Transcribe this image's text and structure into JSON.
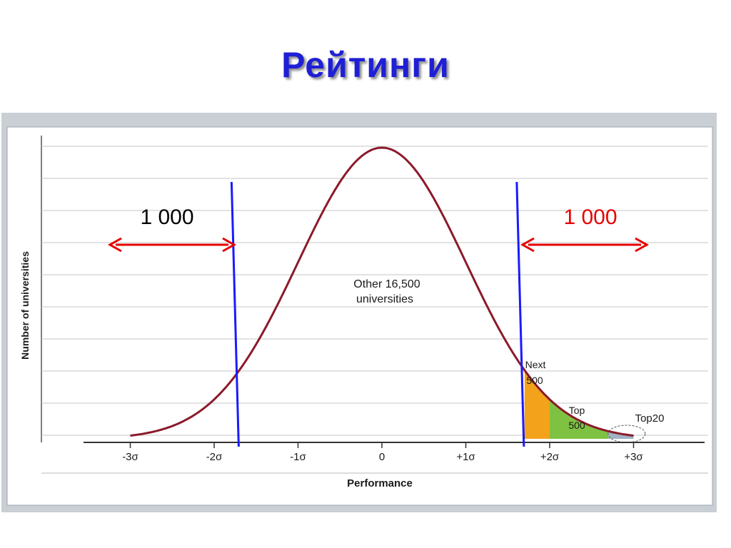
{
  "slide": {
    "title": "Рейтинги"
  },
  "chart_data": {
    "type": "area",
    "xlabel": "Performance",
    "ylabel": "Number of universities",
    "x_ticks": [
      {
        "value": -3,
        "label": "-3σ"
      },
      {
        "value": -2,
        "label": "-2σ"
      },
      {
        "value": -1,
        "label": "-1σ"
      },
      {
        "value": 0,
        "label": "0"
      },
      {
        "value": 1,
        "label": "+1σ"
      },
      {
        "value": 2,
        "label": "+2σ"
      },
      {
        "value": 3,
        "label": "+3σ"
      }
    ],
    "xlim": [
      -3.4,
      3.4
    ],
    "curve": "normal distribution",
    "regions": [
      {
        "name": "other",
        "label": "Other 16,500 universities",
        "from": -3,
        "to": 1.7,
        "color": "#ffffff"
      },
      {
        "name": "next-500",
        "label": "Next 500",
        "from": 1.7,
        "to": 2.0,
        "color": "#f2a31b"
      },
      {
        "name": "top-500",
        "label": "Top 500",
        "from": 2.0,
        "to": 2.7,
        "color": "#7fc242"
      },
      {
        "name": "top-20",
        "label": "Top20",
        "from": 2.7,
        "to": 3.0,
        "color": "#9fb3c2"
      }
    ],
    "grid": true,
    "markers": [
      {
        "name": "left-cutoff",
        "x": -1.75,
        "color": "#1a1aff"
      },
      {
        "name": "right-cutoff",
        "x": 1.65,
        "color": "#1a1aff"
      }
    ],
    "annotations": [
      {
        "name": "left-count",
        "text": "1 000",
        "color": "#000000"
      },
      {
        "name": "right-count",
        "text": "1 000",
        "color": "#e60000"
      }
    ],
    "arrow_color": "#e60000",
    "curve_color": "#8b1a2b"
  }
}
